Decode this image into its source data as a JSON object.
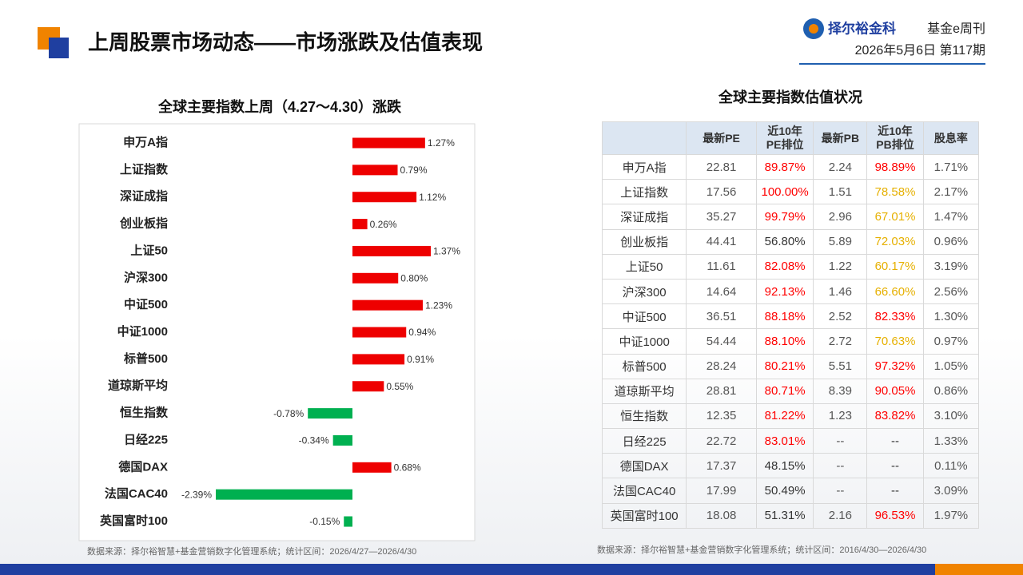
{
  "header": {
    "title": "上周股票市场动态——市场涨跌及估值表现",
    "brand": "择尔裕金科",
    "publication": "基金e周刊",
    "issue": "2026年5月6日  第117期"
  },
  "chart_data": {
    "type": "hbar",
    "title": "全球主要指数上周（4.27～4.30）涨跌",
    "categories": [
      "申万A指",
      "上证指数",
      "深证成指",
      "创业板指",
      "上证50",
      "沪深300",
      "中证500",
      "中证1000",
      "标普500",
      "道琼斯平均",
      "恒生指数",
      "日经225",
      "德国DAX",
      "法国CAC40",
      "英国富时100"
    ],
    "values": [
      1.27,
      0.79,
      1.12,
      0.26,
      1.37,
      0.8,
      1.23,
      0.94,
      0.91,
      0.55,
      -0.78,
      -0.34,
      0.68,
      -2.39,
      -0.15
    ],
    "value_labels": [
      "1.27%",
      "0.79%",
      "1.12%",
      "0.26%",
      "1.37%",
      "0.80%",
      "1.23%",
      "0.94%",
      "0.91%",
      "0.55%",
      "-0.78%",
      "-0.34%",
      "0.68%",
      "-2.39%",
      "-0.15%"
    ],
    "color_up": "#ee0000",
    "color_down": "#00b050",
    "source": "数据来源：择尔裕智慧+基金营销数字化管理系统；统计区间：2026/4/27—2026/4/30"
  },
  "table": {
    "title": "全球主要指数估值状况",
    "header": [
      "最新PE",
      [
        "近10年",
        "PE排位"
      ],
      "最新PB",
      [
        "近10年",
        "PB排位"
      ],
      "股息率"
    ],
    "rows": [
      [
        "申万A指",
        "22.81",
        "89.87%",
        "2.24",
        "98.89%",
        "1.71%"
      ],
      [
        "上证指数",
        "17.56",
        "100.00%",
        "1.51",
        "78.58%",
        "2.17%"
      ],
      [
        "深证成指",
        "35.27",
        "99.79%",
        "2.96",
        "67.01%",
        "1.47%"
      ],
      [
        "创业板指",
        "44.41",
        "56.80%",
        "5.89",
        "72.03%",
        "0.96%"
      ],
      [
        "上证50",
        "11.61",
        "82.08%",
        "1.22",
        "60.17%",
        "3.19%"
      ],
      [
        "沪深300",
        "14.64",
        "92.13%",
        "1.46",
        "66.60%",
        "2.56%"
      ],
      [
        "中证500",
        "36.51",
        "88.18%",
        "2.52",
        "82.33%",
        "1.30%"
      ],
      [
        "中证1000",
        "54.44",
        "88.10%",
        "2.72",
        "70.63%",
        "0.97%"
      ],
      [
        "标普500",
        "28.24",
        "80.21%",
        "5.51",
        "97.32%",
        "1.05%"
      ],
      [
        "道琼斯平均",
        "28.81",
        "80.71%",
        "8.39",
        "90.05%",
        "0.86%"
      ],
      [
        "恒生指数",
        "12.35",
        "81.22%",
        "1.23",
        "83.82%",
        "3.10%"
      ],
      [
        "日经225",
        "22.72",
        "83.01%",
        "--",
        "--",
        "1.33%"
      ],
      [
        "德国DAX",
        "17.37",
        "48.15%",
        "--",
        "--",
        "0.11%"
      ],
      [
        "法国CAC40",
        "17.99",
        "50.49%",
        "--",
        "--",
        "3.09%"
      ],
      [
        "英国富时100",
        "18.08",
        "51.31%",
        "2.16",
        "96.53%",
        "1.97%"
      ]
    ],
    "rank_colors": [
      [
        "#ff0000",
        "#ff0000"
      ],
      [
        "#ff0000",
        "#e6b000"
      ],
      [
        "#ff0000",
        "#e6b000"
      ],
      [
        "#333333",
        "#e6b000"
      ],
      [
        "#ff0000",
        "#e6b000"
      ],
      [
        "#ff0000",
        "#e6b000"
      ],
      [
        "#ff0000",
        "#ff0000"
      ],
      [
        "#ff0000",
        "#e6b000"
      ],
      [
        "#ff0000",
        "#ff0000"
      ],
      [
        "#ff0000",
        "#ff0000"
      ],
      [
        "#ff0000",
        "#ff0000"
      ],
      [
        "#ff0000",
        "#333333"
      ],
      [
        "#333333",
        "#333333"
      ],
      [
        "#333333",
        "#333333"
      ],
      [
        "#333333",
        "#ff0000"
      ]
    ],
    "source": "数据来源：择尔裕智慧+基金营销数字化管理系统；统计区间：2016/4/30—2026/4/30"
  }
}
